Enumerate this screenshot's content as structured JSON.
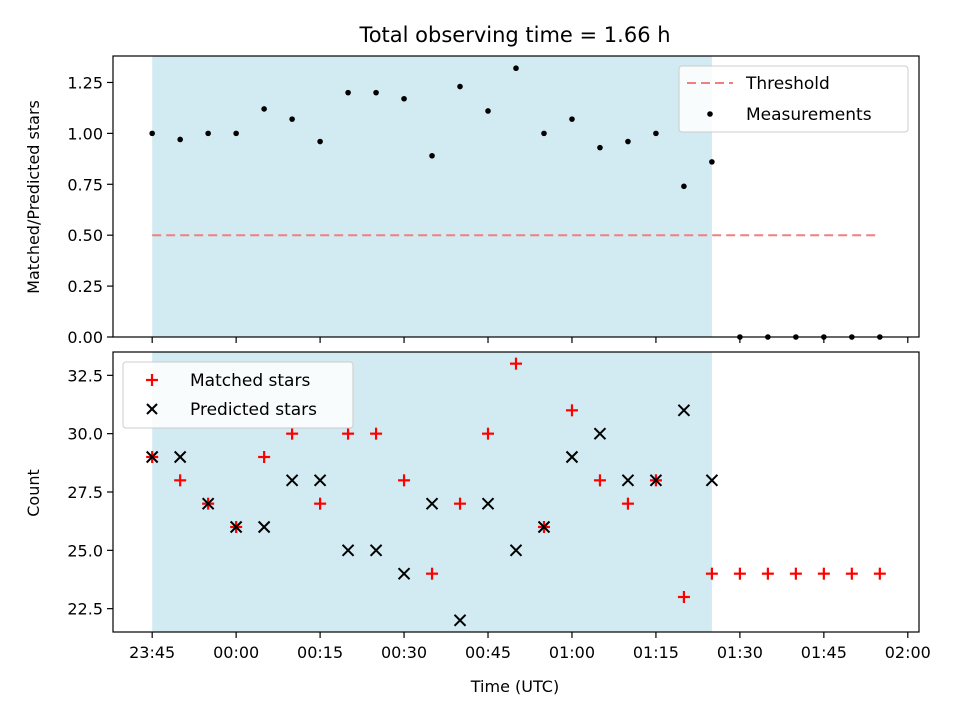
{
  "figure": {
    "title": "Total observing time = 1.66 h",
    "xlabel": "Time (UTC)",
    "x_ticks": [
      "23:45",
      "00:00",
      "00:15",
      "00:30",
      "00:45",
      "01:00",
      "01:15",
      "01:30",
      "01:45",
      "02:00"
    ],
    "observing_window": {
      "start": "23:45",
      "end": "01:25",
      "color": "#add8e6"
    }
  },
  "chart_data": [
    {
      "type": "scatter",
      "ylabel": "Matched/Predicted stars",
      "xlim": [
        "23:38",
        "02:02"
      ],
      "ylim": [
        0,
        1.38
      ],
      "y_ticks": [
        "0.00",
        "0.25",
        "0.50",
        "0.75",
        "1.00",
        "1.25"
      ],
      "grid": false,
      "legend_position": "top-right",
      "threshold": {
        "name": "Threshold",
        "value": 0.5,
        "x_range": [
          "23:45",
          "01:55"
        ],
        "color": "#f08080"
      },
      "series": [
        {
          "name": "Measurements",
          "color": "#000000",
          "marker": "dot",
          "x": [
            "23:45",
            "23:50",
            "23:55",
            "00:00",
            "00:05",
            "00:10",
            "00:15",
            "00:20",
            "00:25",
            "00:30",
            "00:35",
            "00:40",
            "00:45",
            "00:50",
            "00:55",
            "01:00",
            "01:05",
            "01:10",
            "01:15",
            "01:20",
            "01:25",
            "01:30",
            "01:35",
            "01:40",
            "01:45",
            "01:50",
            "01:55"
          ],
          "y": [
            1.0,
            0.97,
            1.0,
            1.0,
            1.12,
            1.07,
            0.96,
            1.2,
            1.2,
            1.17,
            0.89,
            1.23,
            1.11,
            1.32,
            1.0,
            1.07,
            0.93,
            0.96,
            1.0,
            0.74,
            0.86,
            0,
            0,
            0,
            0,
            0,
            0
          ]
        }
      ]
    },
    {
      "type": "scatter",
      "ylabel": "Count",
      "xlim": [
        "23:38",
        "02:02"
      ],
      "ylim": [
        21.5,
        33.5
      ],
      "y_ticks": [
        "22.5",
        "25.0",
        "27.5",
        "30.0",
        "32.5"
      ],
      "grid": false,
      "legend_position": "top-left",
      "series": [
        {
          "name": "Matched stars",
          "color": "#ff0000",
          "marker": "plus",
          "x": [
            "23:45",
            "23:50",
            "23:55",
            "00:00",
            "00:05",
            "00:10",
            "00:15",
            "00:20",
            "00:25",
            "00:30",
            "00:35",
            "00:40",
            "00:45",
            "00:50",
            "00:55",
            "01:00",
            "01:05",
            "01:10",
            "01:15",
            "01:20",
            "01:25",
            "01:30",
            "01:35",
            "01:40",
            "01:45",
            "01:50",
            "01:55"
          ],
          "y": [
            29,
            28,
            27,
            26,
            29,
            30,
            27,
            30,
            30,
            28,
            24,
            27,
            30,
            33,
            26,
            31,
            28,
            27,
            28,
            23,
            24,
            24,
            24,
            24,
            24,
            24,
            24
          ]
        },
        {
          "name": "Predicted stars",
          "color": "#000000",
          "marker": "x",
          "x": [
            "23:45",
            "23:50",
            "23:55",
            "00:00",
            "00:05",
            "00:10",
            "00:15",
            "00:20",
            "00:25",
            "00:30",
            "00:35",
            "00:40",
            "00:45",
            "00:50",
            "00:55",
            "01:00",
            "01:05",
            "01:10",
            "01:15",
            "01:20",
            "01:25"
          ],
          "y": [
            29,
            29,
            27,
            26,
            26,
            28,
            28,
            25,
            25,
            24,
            27,
            22,
            27,
            25,
            26,
            29,
            30,
            28,
            28,
            31,
            28
          ]
        }
      ]
    }
  ]
}
